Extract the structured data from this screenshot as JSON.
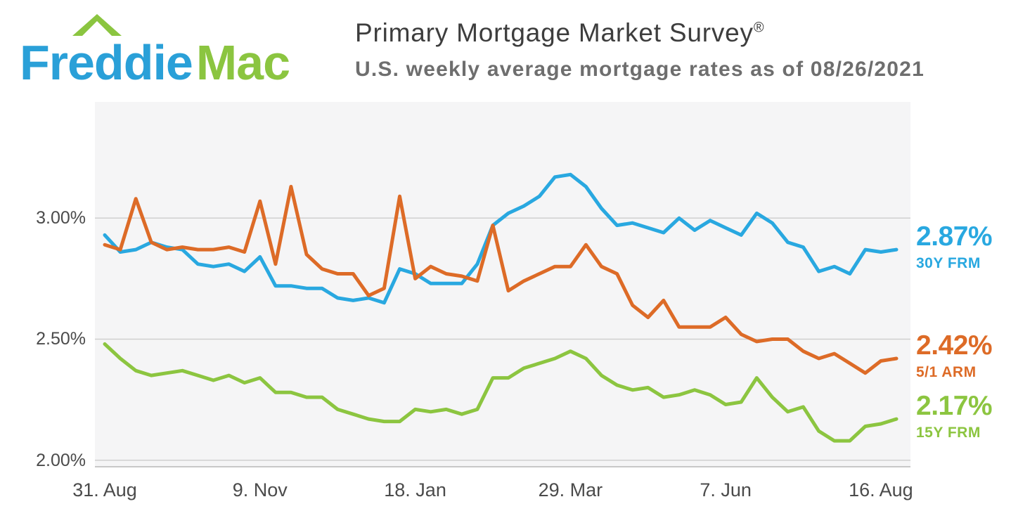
{
  "header": {
    "logo": {
      "part1": "Freddie",
      "part2": "Mac"
    },
    "title": "Primary Mortgage Market Survey",
    "registered_mark": "®",
    "subtitle": "U.S. weekly average mortgage rates as of 08/26/2021"
  },
  "colors": {
    "logo_blue": "#2aa0d8",
    "logo_green": "#8bc540",
    "line_blue": "#29a8e0",
    "line_orange": "#dd6b27",
    "line_green": "#8cc540",
    "title_text": "#3d3d3d",
    "subtitle_text": "#6e6e6e",
    "axis_text": "#4b4b4b",
    "plot_bg": "#f5f5f6",
    "gridline": "#d0d0d0",
    "axis_line": "#c8c8c8"
  },
  "chart_data": {
    "type": "line",
    "title": "Primary Mortgage Market Survey",
    "subtitle": "U.S. weekly average mortgage rates as of 08/26/2021",
    "x_unit": "weeks",
    "xtick_labels": [
      "31. Aug",
      "9. Nov",
      "18. Jan",
      "29. Mar",
      "7. Jun",
      "16. Aug"
    ],
    "xtick_indices": [
      0,
      10,
      20,
      30,
      40,
      50
    ],
    "ytick_labels": [
      "2.00%",
      "2.50%",
      "3.00%"
    ],
    "ytick_values": [
      2.0,
      2.5,
      3.0
    ],
    "ylim": [
      1.97,
      3.48
    ],
    "grid": true,
    "legend_position": "right-end-labels",
    "series": [
      {
        "name": "30Y FRM",
        "end_label": "2.87%",
        "color": "#29a8e0",
        "z": 0,
        "values": [
          2.93,
          2.86,
          2.87,
          2.9,
          2.88,
          2.87,
          2.81,
          2.8,
          2.81,
          2.78,
          2.84,
          2.72,
          2.72,
          2.71,
          2.71,
          2.67,
          2.66,
          2.67,
          2.65,
          2.79,
          2.77,
          2.73,
          2.73,
          2.73,
          2.81,
          2.97,
          3.02,
          3.05,
          3.09,
          3.17,
          3.18,
          3.13,
          3.04,
          2.97,
          2.98,
          2.96,
          2.94,
          3.0,
          2.95,
          2.99,
          2.96,
          2.93,
          3.02,
          2.98,
          2.9,
          2.88,
          2.78,
          2.8,
          2.77,
          2.87,
          2.86,
          2.87
        ]
      },
      {
        "name": "5/1 ARM",
        "end_label": "2.42%",
        "color": "#dd6b27",
        "z": 2,
        "values": [
          2.89,
          2.87,
          3.08,
          2.9,
          2.87,
          2.88,
          2.87,
          2.87,
          2.88,
          2.86,
          3.07,
          2.81,
          3.13,
          2.85,
          2.79,
          2.77,
          2.77,
          2.68,
          2.71,
          3.09,
          2.75,
          2.8,
          2.77,
          2.76,
          2.74,
          2.97,
          2.7,
          2.74,
          2.77,
          2.8,
          2.8,
          2.89,
          2.8,
          2.77,
          2.64,
          2.59,
          2.66,
          2.55,
          2.55,
          2.55,
          2.59,
          2.52,
          2.49,
          2.5,
          2.5,
          2.45,
          2.42,
          2.44,
          2.4,
          2.36,
          2.41,
          2.42
        ]
      },
      {
        "name": "15Y FRM",
        "end_label": "2.17%",
        "color": "#8cc540",
        "z": 1,
        "values": [
          2.48,
          2.42,
          2.37,
          2.35,
          2.36,
          2.37,
          2.35,
          2.33,
          2.35,
          2.32,
          2.34,
          2.28,
          2.28,
          2.26,
          2.26,
          2.21,
          2.19,
          2.17,
          2.16,
          2.16,
          2.21,
          2.2,
          2.21,
          2.19,
          2.21,
          2.34,
          2.34,
          2.38,
          2.4,
          2.42,
          2.45,
          2.42,
          2.35,
          2.31,
          2.29,
          2.3,
          2.26,
          2.27,
          2.29,
          2.27,
          2.23,
          2.24,
          2.34,
          2.26,
          2.2,
          2.22,
          2.12,
          2.08,
          2.08,
          2.14,
          2.15,
          2.17
        ]
      }
    ]
  }
}
